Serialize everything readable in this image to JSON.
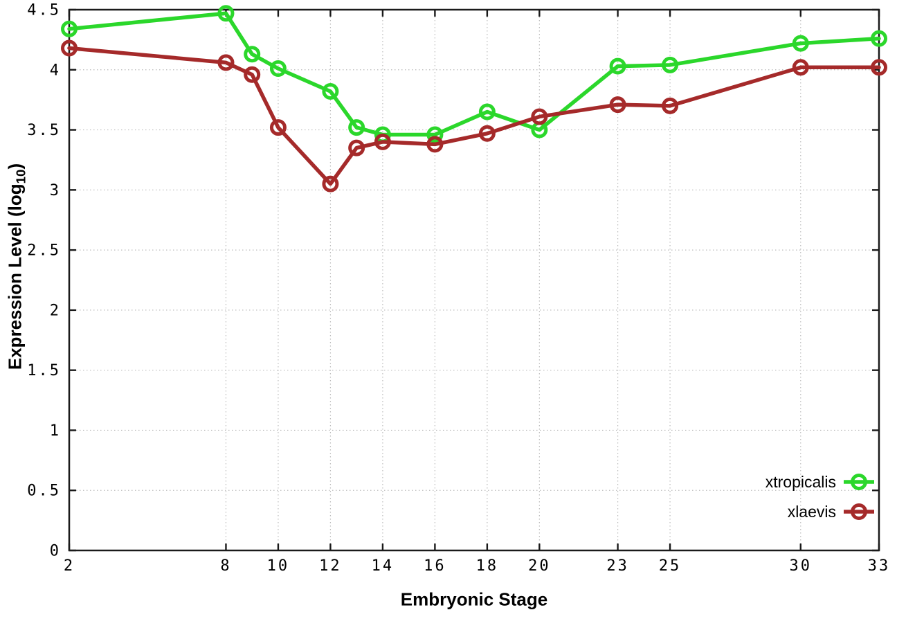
{
  "chart_data": {
    "type": "line",
    "title": "",
    "xlabel": "Embryonic Stage",
    "ylabel": "Expression Level (log10)",
    "ylabel_parts": {
      "pre": "Expression Level (log",
      "sub": "10",
      "post": ")"
    },
    "x": [
      2,
      8,
      9,
      10,
      12,
      13,
      14,
      16,
      18,
      20,
      23,
      25,
      30,
      33
    ],
    "series": [
      {
        "name": "xtropicalis",
        "color": "#2bd72b",
        "values": [
          4.34,
          4.47,
          4.13,
          4.01,
          3.82,
          3.52,
          3.46,
          3.46,
          3.65,
          3.5,
          4.03,
          4.04,
          4.22,
          4.26
        ]
      },
      {
        "name": "xlaevis",
        "color": "#a52a2a",
        "values": [
          4.18,
          4.06,
          3.96,
          3.52,
          3.05,
          3.35,
          3.4,
          3.38,
          3.47,
          3.61,
          3.71,
          3.7,
          4.02,
          4.02
        ]
      }
    ],
    "xlim": [
      2,
      33
    ],
    "ylim": [
      0,
      4.5
    ],
    "xticks": {
      "values": [
        2,
        8,
        10,
        12,
        14,
        16,
        18,
        20,
        23,
        25,
        30,
        33
      ],
      "labels": [
        "2",
        "8",
        "10",
        "12",
        "14",
        "16",
        "18",
        "20",
        "23",
        "25",
        "30",
        "33"
      ]
    },
    "yticks": {
      "values": [
        0,
        0.5,
        1,
        1.5,
        2,
        2.5,
        3,
        3.5,
        4,
        4.5
      ],
      "labels": [
        "0",
        "0.5",
        "1",
        "1.5",
        "2",
        "2.5",
        "3",
        "3.5",
        "4",
        "4.5"
      ]
    },
    "grid": true,
    "legend_position": "bottom-right",
    "marker": "open-circle"
  },
  "colors": {
    "background": "#ffffff",
    "axis": "#1a1a1a",
    "grid": "#bbbbbb",
    "text": "#000000"
  }
}
